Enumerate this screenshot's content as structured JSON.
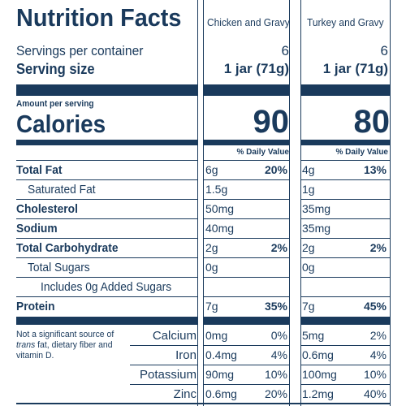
{
  "title": "Nutrition Facts",
  "columns": [
    "Chicken and Gravy",
    "Turkey and Gravy"
  ],
  "servings_label": "Servings per container",
  "servings": [
    "6",
    "6"
  ],
  "serving_size_label": "Serving size",
  "serving_size": [
    "1 jar (71g)",
    "1 jar (71g)"
  ],
  "amount_per_serving": "Amount per serving",
  "calories_label": "Calories",
  "calories": [
    "90",
    "80"
  ],
  "dv_header": "% Daily Value",
  "nutrients": [
    {
      "label": "Total Fat",
      "bold": true,
      "indent": 0,
      "c1": {
        "amt": "6g",
        "dv": "20%"
      },
      "c2": {
        "amt": "4g",
        "dv": "13%"
      }
    },
    {
      "label": "Saturated Fat",
      "bold": false,
      "indent": 1,
      "c1": {
        "amt": "1.5g",
        "dv": ""
      },
      "c2": {
        "amt": "1g",
        "dv": ""
      }
    },
    {
      "label": "Cholesterol",
      "bold": true,
      "indent": 0,
      "c1": {
        "amt": "50mg",
        "dv": ""
      },
      "c2": {
        "amt": "35mg",
        "dv": ""
      }
    },
    {
      "label": "Sodium",
      "bold": true,
      "indent": 0,
      "c1": {
        "amt": "40mg",
        "dv": ""
      },
      "c2": {
        "amt": "35mg",
        "dv": ""
      }
    },
    {
      "label": "Total Carbohydrate",
      "bold": true,
      "indent": 0,
      "c1": {
        "amt": "2g",
        "dv": "2%"
      },
      "c2": {
        "amt": "2g",
        "dv": "2%"
      }
    },
    {
      "label": "Total Sugars",
      "bold": false,
      "indent": 1,
      "c1": {
        "amt": "0g",
        "dv": ""
      },
      "c2": {
        "amt": "0g",
        "dv": ""
      }
    },
    {
      "label": "Includes 0g Added Sugars",
      "bold": false,
      "indent": 2,
      "c1": {
        "amt": "",
        "dv": ""
      },
      "c2": {
        "amt": "",
        "dv": ""
      }
    },
    {
      "label": "Protein",
      "bold": true,
      "indent": 0,
      "c1": {
        "amt": "7g",
        "dv": "35%"
      },
      "c2": {
        "amt": "7g",
        "dv": "45%"
      }
    }
  ],
  "footnote": [
    "Not a significant source of",
    "trans fat, dietary fiber and",
    "vitamin D."
  ],
  "footnote_italic": "trans",
  "minerals": [
    {
      "label": "Calcium",
      "c1": {
        "amt": "0mg",
        "dv": "0%"
      },
      "c2": {
        "amt": "5mg",
        "dv": "2%"
      }
    },
    {
      "label": "Iron",
      "c1": {
        "amt": "0.4mg",
        "dv": "4%"
      },
      "c2": {
        "amt": "0.6mg",
        "dv": "4%"
      }
    },
    {
      "label": "Potassium",
      "c1": {
        "amt": "90mg",
        "dv": "10%"
      },
      "c2": {
        "amt": "100mg",
        "dv": "10%"
      }
    },
    {
      "label": "Zinc",
      "c1": {
        "amt": "0.6mg",
        "dv": "20%"
      },
      "c2": {
        "amt": "1.2mg",
        "dv": "40%"
      }
    }
  ],
  "colors": {
    "ink": "#1a3a5c",
    "background": "#ffffff"
  }
}
